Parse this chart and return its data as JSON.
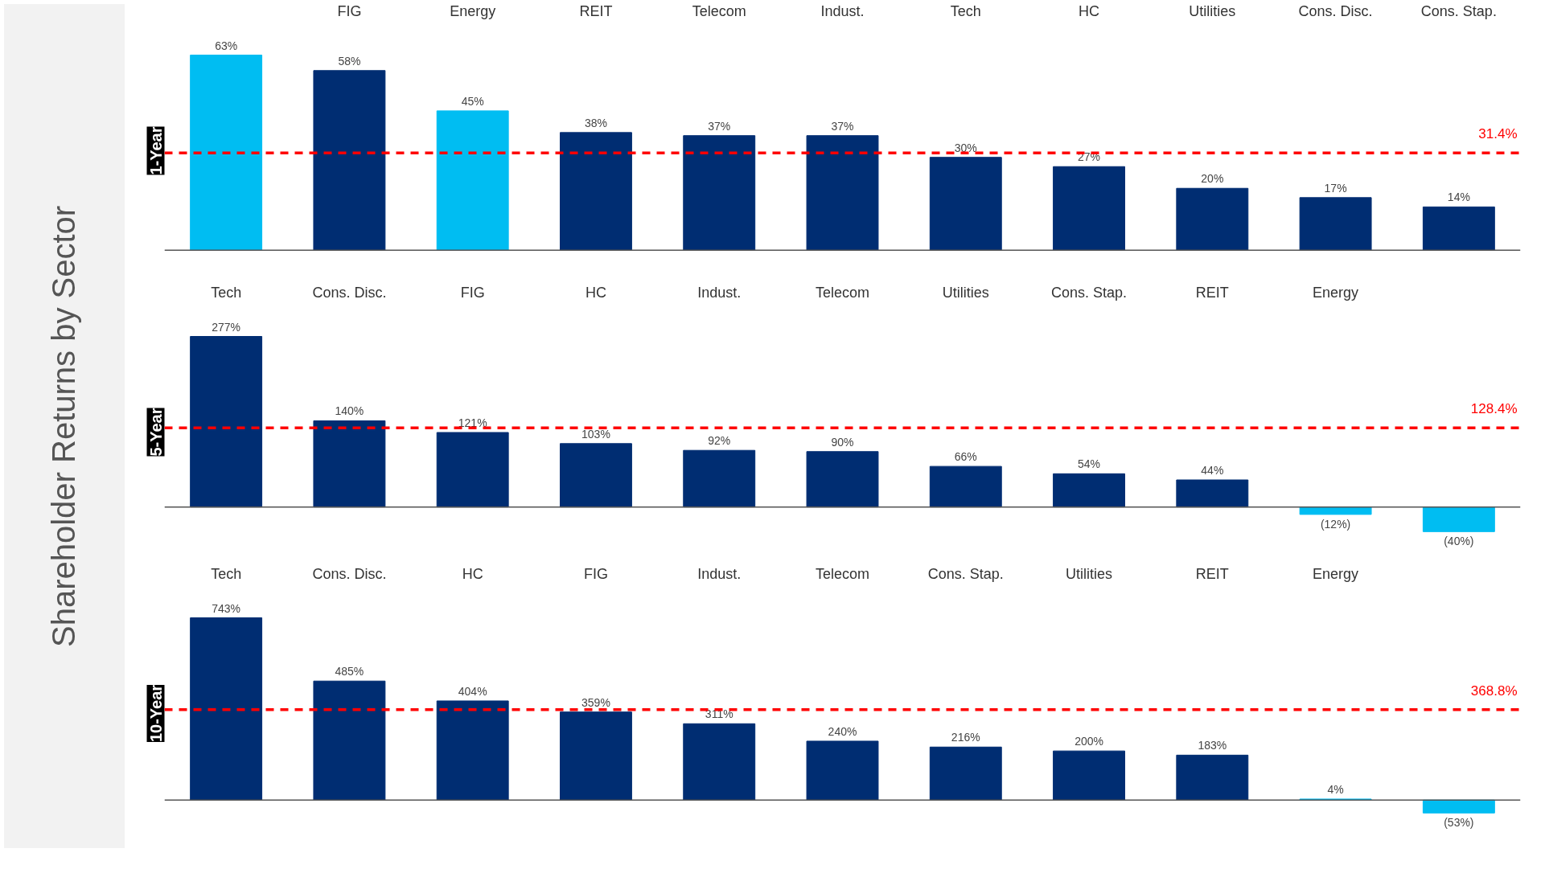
{
  "chart_data": [
    {
      "type": "bar",
      "title": "Shareholder Returns by Sector",
      "ylabel": "1-Year",
      "categories": [
        null,
        "FIG",
        "Energy",
        "REIT",
        "Telecom",
        "Indust.",
        "Tech",
        "HC",
        "Utilities",
        "Cons. Disc.",
        "Cons. Stap."
      ],
      "values": [
        63,
        58,
        45,
        38,
        37,
        37,
        30,
        27,
        20,
        17,
        14
      ],
      "colors": [
        "#00bdf2",
        "#002d72",
        "#00bdf2",
        "#002d72",
        "#002d72",
        "#002d72",
        "#002d72",
        "#002d72",
        "#002d72",
        "#002d72",
        "#002d72"
      ],
      "value_labels": [
        "63%",
        "58%",
        "45%",
        "38%",
        "37%",
        "37%",
        "30%",
        "27%",
        "20%",
        "17%",
        "14%"
      ],
      "ref_lines": [
        {
          "axis": "y",
          "value": 31.4,
          "label": "31.4%",
          "color": "#ff0000",
          "line_style": "dashed"
        }
      ],
      "grid": false
    },
    {
      "type": "bar",
      "ylabel": "5-Year",
      "categories": [
        "Tech",
        "Cons. Disc.",
        "FIG",
        "HC",
        "Indust.",
        "Telecom",
        "Utilities",
        "Cons. Stap.",
        "REIT",
        "Energy",
        null
      ],
      "values": [
        277,
        140,
        121,
        103,
        92,
        90,
        66,
        54,
        44,
        -12,
        -40
      ],
      "colors": [
        "#002d72",
        "#002d72",
        "#002d72",
        "#002d72",
        "#002d72",
        "#002d72",
        "#002d72",
        "#002d72",
        "#002d72",
        "#00bdf2",
        "#00bdf2"
      ],
      "value_labels": [
        "277%",
        "140%",
        "121%",
        "103%",
        "92%",
        "90%",
        "66%",
        "54%",
        "44%",
        "(12%)",
        "(40%)"
      ],
      "ref_lines": [
        {
          "axis": "y",
          "value": 128.4,
          "label": "128.4%",
          "color": "#ff0000",
          "line_style": "dashed"
        }
      ],
      "grid": false
    },
    {
      "type": "bar",
      "ylabel": "10-Year",
      "categories": [
        "Tech",
        "Cons. Disc.",
        "HC",
        "FIG",
        "Indust.",
        "Telecom",
        "Cons. Stap.",
        "Utilities",
        "REIT",
        "Energy",
        null
      ],
      "values": [
        743,
        485,
        404,
        359,
        311,
        240,
        216,
        200,
        183,
        4,
        -53
      ],
      "colors": [
        "#002d72",
        "#002d72",
        "#002d72",
        "#002d72",
        "#002d72",
        "#002d72",
        "#002d72",
        "#002d72",
        "#002d72",
        "#00bdf2",
        "#00bdf2"
      ],
      "value_labels": [
        "743%",
        "485%",
        "404%",
        "359%",
        "311%",
        "240%",
        "216%",
        "200%",
        "183%",
        "4%",
        "(53%)"
      ],
      "ref_lines": [
        {
          "axis": "y",
          "value": 368.8,
          "label": "368.8%",
          "color": "#ff0000",
          "line_style": "dashed"
        }
      ],
      "grid": false
    }
  ]
}
